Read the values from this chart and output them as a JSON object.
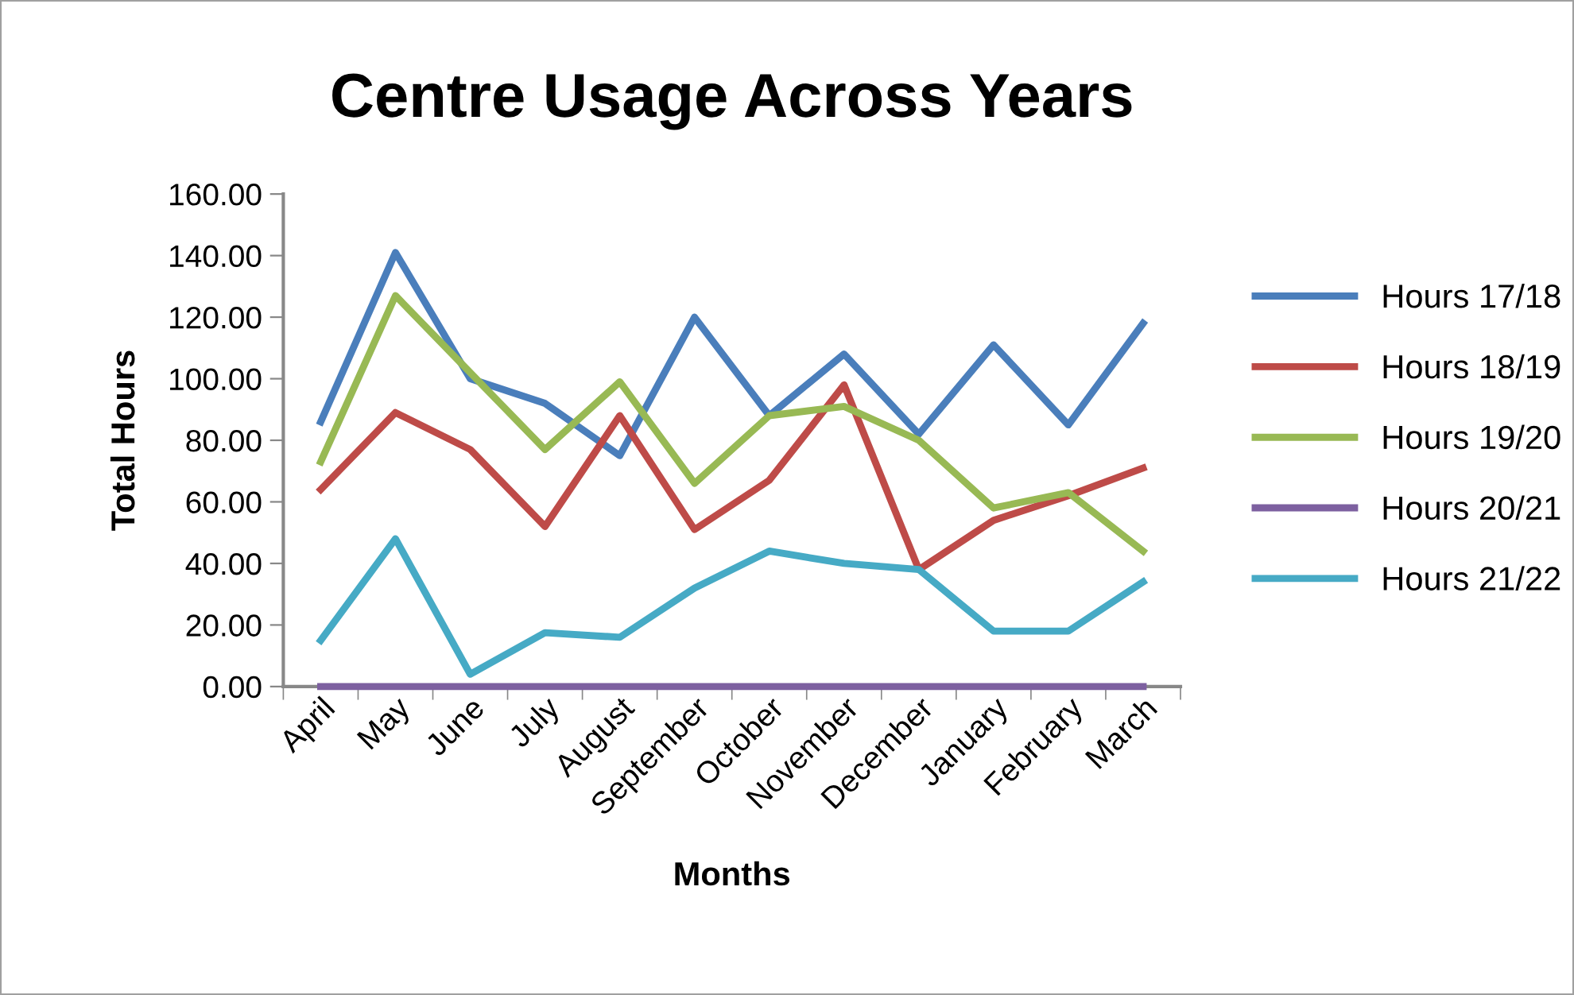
{
  "chart_data": {
    "type": "line",
    "title": "Centre Usage Across Years",
    "xlabel": "Months",
    "ylabel": "Total Hours",
    "categories": [
      "April",
      "May",
      "June",
      "July",
      "August",
      "September",
      "October",
      "November",
      "December",
      "January",
      "February",
      "March"
    ],
    "series": [
      {
        "name": "Hours 17/18",
        "color": "#4a7ebb",
        "values": [
          86,
          141,
          100,
          92,
          75,
          120,
          88,
          108,
          82,
          111,
          85,
          118
        ]
      },
      {
        "name": "Hours 18/19",
        "color": "#be4b48",
        "values": [
          64,
          89,
          77,
          52,
          88,
          51,
          67,
          98,
          38,
          54,
          62,
          71
        ]
      },
      {
        "name": "Hours 19/20",
        "color": "#98b954",
        "values": [
          73,
          127,
          102,
          77,
          99,
          66,
          88,
          91,
          80,
          58,
          63,
          44
        ]
      },
      {
        "name": "Hours 20/21",
        "color": "#7d60a0",
        "values": [
          0,
          0,
          0,
          0,
          0,
          0,
          0,
          0,
          0,
          0,
          0,
          0
        ]
      },
      {
        "name": "Hours 21/22",
        "color": "#46aac5",
        "values": [
          15,
          48,
          4,
          17.5,
          16,
          32,
          44,
          40,
          38,
          18,
          18,
          34
        ]
      }
    ],
    "ylim": [
      0,
      160
    ],
    "yticks": [
      {
        "value": 0,
        "label": "0.00"
      },
      {
        "value": 20,
        "label": "20.00"
      },
      {
        "value": 40,
        "label": "40.00"
      },
      {
        "value": 60,
        "label": "60.00"
      },
      {
        "value": 80,
        "label": "80.00"
      },
      {
        "value": 100,
        "label": "100.00"
      },
      {
        "value": 120,
        "label": "120.00"
      },
      {
        "value": 140,
        "label": "140.00"
      },
      {
        "value": 160,
        "label": "160.00"
      }
    ],
    "grid": false,
    "legend": "right",
    "marker": "none",
    "line_style": "solid"
  }
}
